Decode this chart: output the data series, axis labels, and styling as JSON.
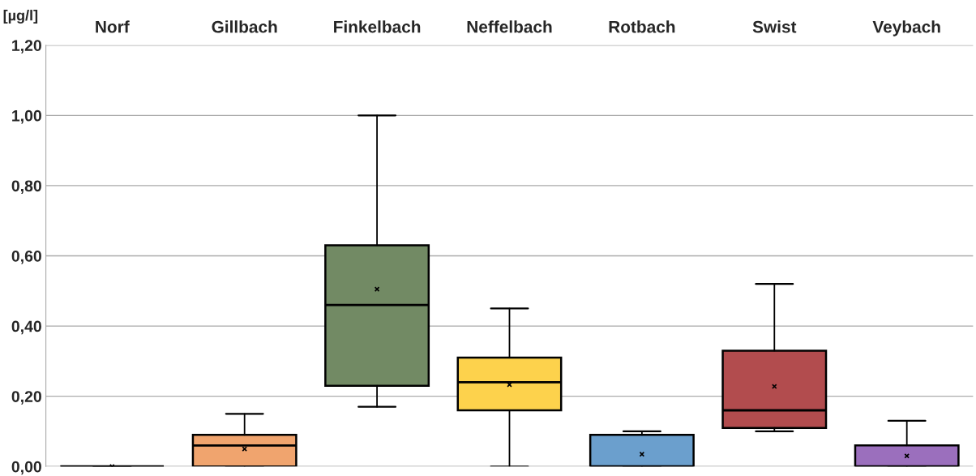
{
  "chart_data": {
    "type": "box",
    "ylabel": "[µg/l]",
    "categories": [
      "Norf",
      "Gillbach",
      "Finkelbach",
      "Neffelbach",
      "Rotbach",
      "Swist",
      "Veybach"
    ],
    "boxes": [
      {
        "low": 0,
        "q1": 0,
        "median": 0,
        "q3": 0,
        "high": 0,
        "mean": 0
      },
      {
        "low": 0,
        "q1": 0,
        "median": 0.06,
        "q3": 0.09,
        "high": 0.15,
        "mean": 0.05
      },
      {
        "low": 0.17,
        "q1": 0.23,
        "median": 0.46,
        "q3": 0.63,
        "high": 1.0,
        "mean": 0.505
      },
      {
        "low": 0,
        "q1": 0.16,
        "median": 0.24,
        "q3": 0.31,
        "high": 0.45,
        "mean": 0.233
      },
      {
        "low": 0,
        "q1": 0,
        "median": 0,
        "q3": 0.09,
        "high": 0.1,
        "mean": 0.035
      },
      {
        "low": 0.1,
        "q1": 0.11,
        "median": 0.16,
        "q3": 0.33,
        "high": 0.52,
        "mean": 0.228
      },
      {
        "low": 0,
        "q1": 0,
        "median": 0,
        "q3": 0.06,
        "high": 0.13,
        "mean": 0.03
      }
    ],
    "colors": [
      "#000000",
      "#f0a46e",
      "#728a64",
      "#fdd24c",
      "#6b9fcd",
      "#b24c4e",
      "#9b6fbd"
    ],
    "ylim": [
      0,
      1.2
    ],
    "yticks": [
      {
        "value": 0,
        "label": "0,00"
      },
      {
        "value": 0.2,
        "label": "0,20"
      },
      {
        "value": 0.4,
        "label": "0,40"
      },
      {
        "value": 0.6,
        "label": "0,60"
      },
      {
        "value": 0.8,
        "label": "0,80"
      },
      {
        "value": 1.0,
        "label": "1,00"
      },
      {
        "value": 1.2,
        "label": "1,20"
      }
    ],
    "grid": "y",
    "marker": "cross"
  }
}
